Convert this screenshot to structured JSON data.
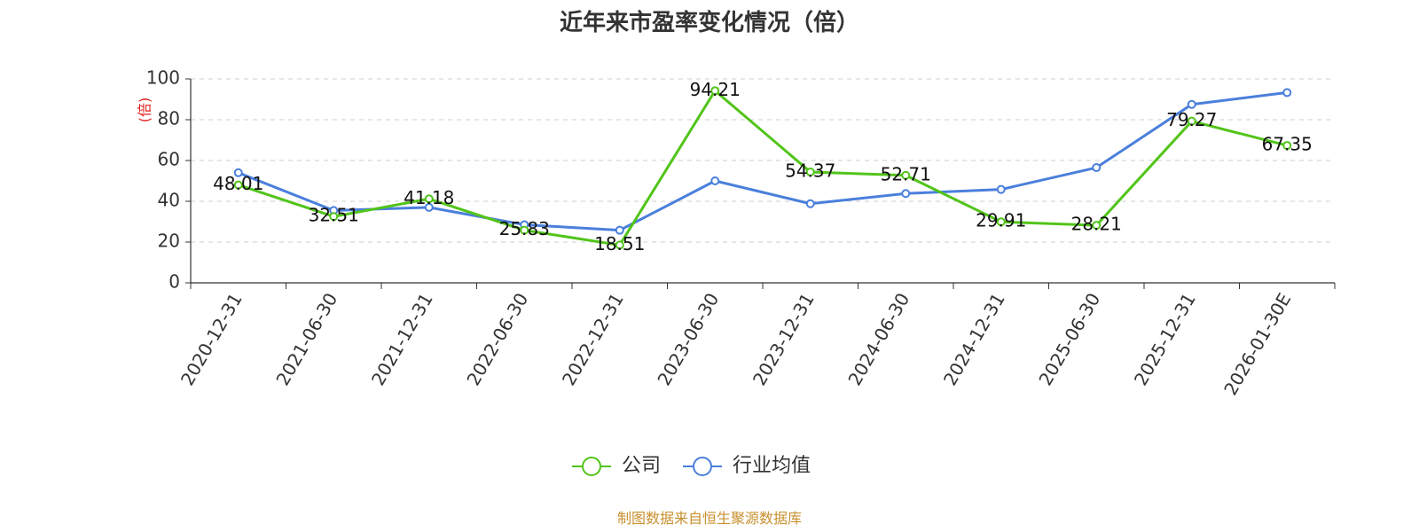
{
  "chart_data": {
    "type": "line",
    "title": "近年来市盈率变化情况（倍）",
    "ylabel": "(倍)",
    "xlabel": "",
    "ylim": [
      0,
      100
    ],
    "y_ticks": [
      0,
      20,
      40,
      60,
      80,
      100
    ],
    "grid": true,
    "legend_position": "bottom-center",
    "categories": [
      "2020-12-31",
      "2021-06-30",
      "2021-12-31",
      "2022-06-30",
      "2022-12-31",
      "2023-06-30",
      "2023-12-31",
      "2024-06-30",
      "2024-12-31",
      "2025-06-30",
      "2025-12-31",
      "2026-01-30E"
    ],
    "series": [
      {
        "name": "公司",
        "color": "#52c41a",
        "values": [
          48.01,
          32.51,
          41.18,
          25.83,
          18.51,
          94.21,
          54.37,
          52.71,
          29.91,
          28.21,
          79.27,
          67.35
        ],
        "labels": [
          "48.01",
          "32.51",
          "41.18",
          "25.83",
          "18.51",
          "94.21",
          "54.37",
          "52.71",
          "29.91",
          "28.21",
          "79.27",
          "67.35"
        ]
      },
      {
        "name": "行业均值",
        "color": "#4a7fdc",
        "values": [
          54.0,
          35.5,
          37.0,
          28.5,
          25.8,
          50.0,
          38.8,
          43.8,
          45.8,
          56.5,
          87.5,
          93.3
        ]
      }
    ],
    "ylabel_color": "#e02020"
  },
  "source_text": "制图数据来自恒生聚源数据库",
  "source_color": "#c8902e"
}
